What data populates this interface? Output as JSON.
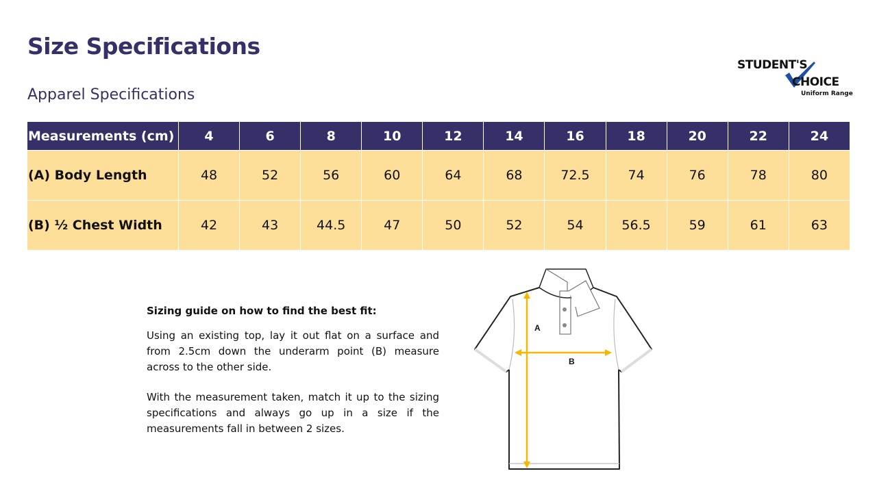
{
  "header": {
    "title": "Size Specifications",
    "subtitle": "Apparel Specifications"
  },
  "logo": {
    "line1": "STUDENT'S",
    "line2": "CHOICE",
    "line3": "Uniform Range",
    "check_color": "#1f4fa3"
  },
  "table": {
    "headers": [
      "Measurements (cm)",
      "4",
      "6",
      "8",
      "10",
      "12",
      "14",
      "16",
      "18",
      "20",
      "22",
      "24"
    ],
    "rows": [
      {
        "label": "(A) Body Length",
        "values": [
          "48",
          "52",
          "56",
          "60",
          "64",
          "68",
          "72.5",
          "74",
          "76",
          "78",
          "80"
        ]
      },
      {
        "label": "(B) ½ Chest Width",
        "values": [
          "42",
          "43",
          "44.5",
          "47",
          "50",
          "52",
          "54",
          "56.5",
          "59",
          "61",
          "63"
        ]
      }
    ],
    "header_color": "#353068",
    "row_color": "#fddf9a"
  },
  "guide": {
    "heading": "Sizing guide on how to find the best fit:",
    "paragraphs": [
      "Using an existing top, lay it out flat on a surface and from 2.5cm down the underarm point (B) measure across to the other side.",
      "With the measurement taken, match it up to the sizing specifications and always go up in a size if the measurements fall in between 2 sizes."
    ]
  },
  "diagram": {
    "label_a": "A",
    "label_b": "B",
    "arrow_color": "#f5b800"
  }
}
